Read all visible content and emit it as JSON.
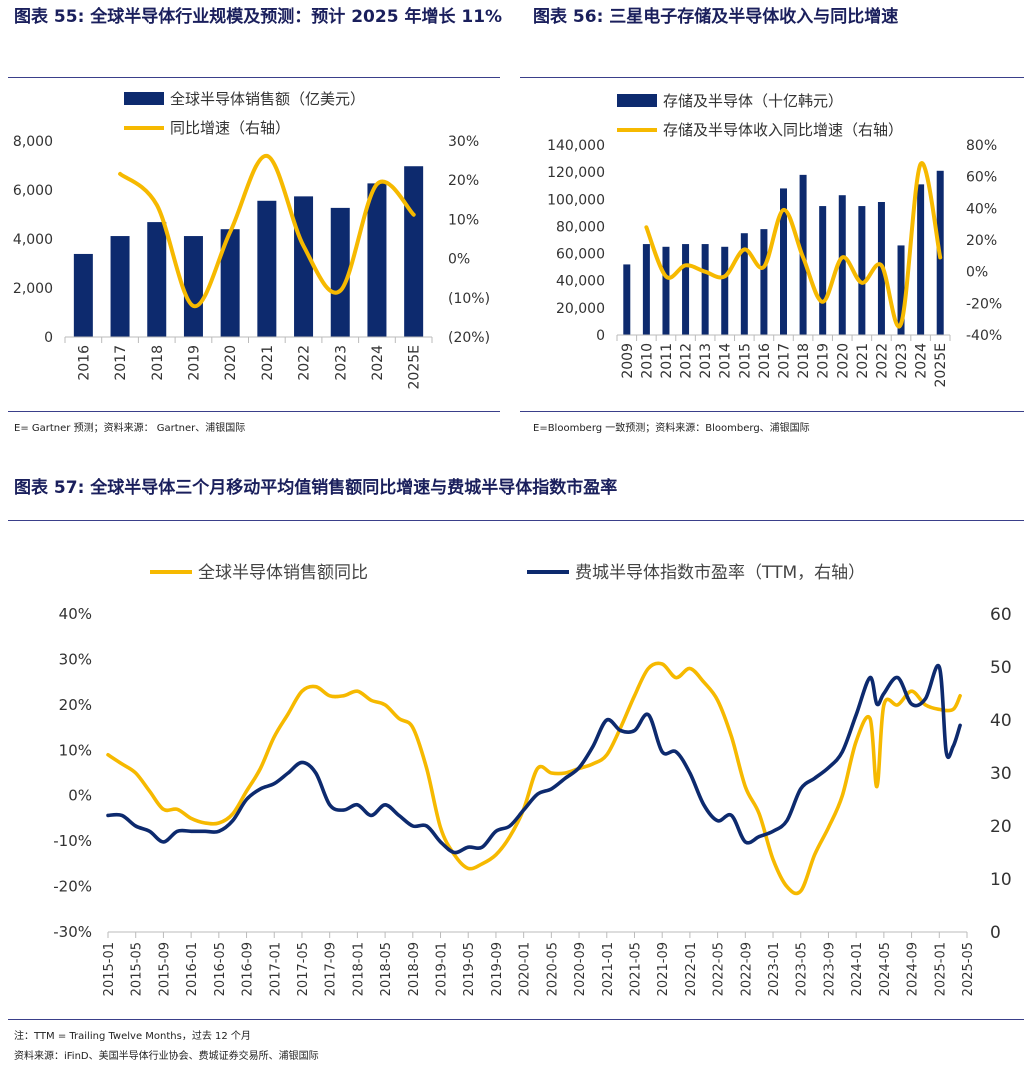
{
  "colors": {
    "navy": "#0d2a6e",
    "gold": "#f6b900",
    "title": "#1a1f5c",
    "rule": "#3a3f8a"
  },
  "fig55": {
    "title_prefix": "图表  55:",
    "title_text": "全球半导体行业规模及预测：预计 2025 年增长 11%",
    "note": "E= Gartner 预测；资料来源：   Gartner、浦银国际"
  },
  "fig56": {
    "title_prefix": "图表  56:",
    "title_text": "三星电子存储及半导体收入与同比增速",
    "note": "E=Bloomberg 一致预测；资料来源：Bloomberg、浦银国际"
  },
  "fig57": {
    "title_prefix": "图表  57:",
    "title_text": "全球半导体三个月移动平均值销售额同比增速与费城半导体指数市盈率",
    "note1": "注：TTM = Trailing Twelve Months，过去 12 个月",
    "note2": "资料来源：iFinD、美国半导体行业协会、费城证券交易所、浦银国际"
  },
  "chart_data": [
    {
      "type": "bar",
      "categories": [
        "2016",
        "2017",
        "2018",
        "2019",
        "2020",
        "2021",
        "2022",
        "2023",
        "2024",
        "2025E"
      ],
      "series": [
        {
          "name": "全球半导体销售额（亿美元）",
          "type": "bar",
          "axis": "left",
          "values": [
            3390,
            4120,
            4690,
            4120,
            4400,
            5560,
            5740,
            5270,
            6270,
            6970
          ]
        },
        {
          "name": "同比增速（右轴）",
          "type": "line",
          "axis": "right",
          "values": [
            null,
            21.6,
            13.7,
            -12.1,
            6.8,
            26.2,
            3.2,
            -8.2,
            19.0,
            11.2
          ]
        }
      ],
      "ylim_left": [
        0,
        8000
      ],
      "yticks_left": [
        "0",
        "2,000",
        "4,000",
        "6,000",
        "8,000"
      ],
      "ylim_right": [
        -20,
        30
      ],
      "yticks_right": [
        "(20%)",
        "(10%)",
        "0%",
        "10%",
        "20%",
        "30%"
      ],
      "legend": "top-center"
    },
    {
      "type": "bar",
      "categories": [
        "2009",
        "2010",
        "2011",
        "2012",
        "2013",
        "2014",
        "2015",
        "2016",
        "2017",
        "2018",
        "2019",
        "2020",
        "2021",
        "2022",
        "2023",
        "2024",
        "2025E"
      ],
      "series": [
        {
          "name": "存储及半导体（十亿韩元）",
          "type": "bar",
          "axis": "left",
          "values": [
            52000,
            67000,
            65000,
            67000,
            67000,
            65000,
            75000,
            78000,
            108000,
            118000,
            95000,
            103000,
            95000,
            98000,
            66000,
            111000,
            121000
          ]
        },
        {
          "name": "存储及半导体收入同比增速（右轴）",
          "type": "line",
          "axis": "right",
          "values": [
            null,
            28,
            -3,
            4,
            0,
            -3,
            14,
            3,
            39,
            9,
            -19,
            9,
            -7,
            4,
            -33,
            68,
            9
          ]
        }
      ],
      "ylim_left": [
        0,
        140000
      ],
      "yticks_left": [
        "0",
        "20,000",
        "40,000",
        "60,000",
        "80,000",
        "100,000",
        "120,000",
        "140,000"
      ],
      "ylim_right": [
        -40,
        80
      ],
      "yticks_right": [
        "-40%",
        "-20%",
        "0%",
        "20%",
        "40%",
        "60%",
        "80%"
      ],
      "legend": "top-left"
    },
    {
      "type": "line",
      "x_start": "2015-01",
      "x_end": "2025-05",
      "x_ticks": [
        "2015-01",
        "2015-05",
        "2015-09",
        "2016-01",
        "2016-05",
        "2016-09",
        "2017-01",
        "2017-05",
        "2017-09",
        "2018-01",
        "2018-05",
        "2018-09",
        "2019-01",
        "2019-05",
        "2019-09",
        "2020-01",
        "2020-05",
        "2020-09",
        "2021-01",
        "2021-05",
        "2021-09",
        "2022-01",
        "2022-05",
        "2022-09",
        "2023-01",
        "2023-05",
        "2023-09",
        "2024-01",
        "2024-05",
        "2024-09",
        "2025-01",
        "2025-05"
      ],
      "series": [
        {
          "name": "全球半导体销售额同比",
          "axis": "left",
          "color": "gold",
          "points": [
            [
              "2015-01",
              9
            ],
            [
              "2015-03",
              7
            ],
            [
              "2015-05",
              5
            ],
            [
              "2015-07",
              1
            ],
            [
              "2015-09",
              -3
            ],
            [
              "2015-11",
              -3
            ],
            [
              "2016-01",
              -5
            ],
            [
              "2016-03",
              -6
            ],
            [
              "2016-05",
              -6
            ],
            [
              "2016-07",
              -4
            ],
            [
              "2016-09",
              1
            ],
            [
              "2016-11",
              6
            ],
            [
              "2017-01",
              13
            ],
            [
              "2017-03",
              18
            ],
            [
              "2017-05",
              23
            ],
            [
              "2017-07",
              24
            ],
            [
              "2017-09",
              22
            ],
            [
              "2017-11",
              22
            ],
            [
              "2018-01",
              23
            ],
            [
              "2018-03",
              21
            ],
            [
              "2018-05",
              20
            ],
            [
              "2018-07",
              17
            ],
            [
              "2018-09",
              15
            ],
            [
              "2018-11",
              6
            ],
            [
              "2019-01",
              -7
            ],
            [
              "2019-03",
              -13
            ],
            [
              "2019-05",
              -16
            ],
            [
              "2019-07",
              -15
            ],
            [
              "2019-09",
              -13
            ],
            [
              "2019-11",
              -9
            ],
            [
              "2020-01",
              -3
            ],
            [
              "2020-03",
              6
            ],
            [
              "2020-05",
              5
            ],
            [
              "2020-07",
              5
            ],
            [
              "2020-09",
              6
            ],
            [
              "2020-11",
              7
            ],
            [
              "2021-01",
              9
            ],
            [
              "2021-03",
              15
            ],
            [
              "2021-05",
              22
            ],
            [
              "2021-07",
              28
            ],
            [
              "2021-09",
              29
            ],
            [
              "2021-11",
              26
            ],
            [
              "2022-01",
              28
            ],
            [
              "2022-03",
              25
            ],
            [
              "2022-05",
              21
            ],
            [
              "2022-07",
              13
            ],
            [
              "2022-09",
              2
            ],
            [
              "2022-11",
              -4
            ],
            [
              "2023-01",
              -14
            ],
            [
              "2023-03",
              -20
            ],
            [
              "2023-05",
              -21
            ],
            [
              "2023-07",
              -13
            ],
            [
              "2023-09",
              -7
            ],
            [
              "2023-11",
              0
            ],
            [
              "2024-01",
              12
            ],
            [
              "2024-03",
              17
            ],
            [
              "2024-04",
              2
            ],
            [
              "2024-05",
              20
            ],
            [
              "2024-07",
              20
            ],
            [
              "2024-09",
              23
            ],
            [
              "2024-11",
              20
            ],
            [
              "2025-01",
              19
            ],
            [
              "2025-03",
              19
            ],
            [
              "2025-04",
              22
            ]
          ]
        },
        {
          "name": "费城半导体指数市盈率（TTM，右轴）",
          "axis": "right",
          "color": "navy",
          "points": [
            [
              "2015-01",
              22
            ],
            [
              "2015-03",
              22
            ],
            [
              "2015-05",
              20
            ],
            [
              "2015-07",
              19
            ],
            [
              "2015-09",
              17
            ],
            [
              "2015-11",
              19
            ],
            [
              "2016-01",
              19
            ],
            [
              "2016-03",
              19
            ],
            [
              "2016-05",
              19
            ],
            [
              "2016-07",
              21
            ],
            [
              "2016-09",
              25
            ],
            [
              "2016-11",
              27
            ],
            [
              "2017-01",
              28
            ],
            [
              "2017-03",
              30
            ],
            [
              "2017-05",
              32
            ],
            [
              "2017-07",
              30
            ],
            [
              "2017-09",
              24
            ],
            [
              "2017-11",
              23
            ],
            [
              "2018-01",
              24
            ],
            [
              "2018-03",
              22
            ],
            [
              "2018-05",
              24
            ],
            [
              "2018-07",
              22
            ],
            [
              "2018-09",
              20
            ],
            [
              "2018-11",
              20
            ],
            [
              "2019-01",
              17
            ],
            [
              "2019-03",
              15
            ],
            [
              "2019-05",
              16
            ],
            [
              "2019-07",
              16
            ],
            [
              "2019-09",
              19
            ],
            [
              "2019-11",
              20
            ],
            [
              "2020-01",
              23
            ],
            [
              "2020-03",
              26
            ],
            [
              "2020-05",
              27
            ],
            [
              "2020-07",
              29
            ],
            [
              "2020-09",
              31
            ],
            [
              "2020-11",
              35
            ],
            [
              "2021-01",
              40
            ],
            [
              "2021-03",
              38
            ],
            [
              "2021-05",
              38
            ],
            [
              "2021-07",
              41
            ],
            [
              "2021-09",
              34
            ],
            [
              "2021-11",
              34
            ],
            [
              "2022-01",
              30
            ],
            [
              "2022-03",
              24
            ],
            [
              "2022-05",
              21
            ],
            [
              "2022-07",
              22
            ],
            [
              "2022-09",
              17
            ],
            [
              "2022-11",
              18
            ],
            [
              "2023-01",
              19
            ],
            [
              "2023-03",
              21
            ],
            [
              "2023-05",
              27
            ],
            [
              "2023-07",
              29
            ],
            [
              "2023-09",
              31
            ],
            [
              "2023-11",
              34
            ],
            [
              "2024-01",
              41
            ],
            [
              "2024-03",
              48
            ],
            [
              "2024-04",
              43
            ],
            [
              "2024-05",
              45
            ],
            [
              "2024-07",
              48
            ],
            [
              "2024-09",
              43
            ],
            [
              "2024-11",
              44
            ],
            [
              "2025-01",
              50
            ],
            [
              "2025-02",
              34
            ],
            [
              "2025-03",
              35
            ],
            [
              "2025-04",
              39
            ]
          ]
        }
      ],
      "ylim_left": [
        -30,
        40
      ],
      "yticks_left": [
        "-30%",
        "-20%",
        "-10%",
        "0%",
        "10%",
        "20%",
        "30%",
        "40%"
      ],
      "ylim_right": [
        0,
        60
      ],
      "yticks_right": [
        "0",
        "10",
        "20",
        "30",
        "40",
        "50",
        "60"
      ],
      "legend": "top-center"
    }
  ]
}
